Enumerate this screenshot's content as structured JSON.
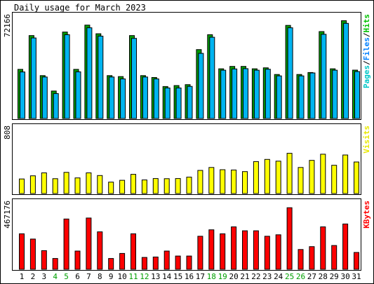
{
  "chart_data": {
    "type": "bar",
    "title": "Daily usage for March 2023",
    "days": [
      "1",
      "2",
      "3",
      "4",
      "5",
      "6",
      "7",
      "8",
      "9",
      "10",
      "11",
      "12",
      "13",
      "14",
      "15",
      "16",
      "17",
      "18",
      "19",
      "20",
      "21",
      "22",
      "23",
      "24",
      "25",
      "26",
      "27",
      "28",
      "29",
      "30",
      "31"
    ],
    "weekend_days": [
      "4",
      "5",
      "11",
      "12",
      "18",
      "19",
      "25",
      "26"
    ],
    "panels": [
      {
        "id": "pages-files-hits",
        "max_label": "72166",
        "ymax": 72166,
        "legend": [
          {
            "text": "Pages",
            "color": "#00c8c8"
          },
          {
            "text": "/",
            "color": "#000000"
          },
          {
            "text": "Files",
            "color": "#0080ff"
          },
          {
            "text": "/",
            "color": "#000000"
          },
          {
            "text": "Hits",
            "color": "#00c000"
          }
        ],
        "series": [
          {
            "name": "Hits",
            "color": "#009900",
            "values": [
              35400,
              59700,
              30900,
              19800,
              62200,
              35400,
              67200,
              61000,
              30900,
              30200,
              59700,
              30900,
              29500,
              23000,
              23700,
              24400,
              49600,
              60300,
              35800,
              37500,
              37500,
              35800,
              36500,
              31700,
              67000,
              31700,
              33100,
              62600,
              35800,
              70400,
              34800
            ]
          },
          {
            "name": "Files",
            "color": "#00b4f0",
            "values": [
              34500,
              59000,
              30900,
              19000,
              61300,
              34600,
              66300,
              60300,
              30900,
              29500,
              58700,
              30900,
              29500,
              23000,
              23000,
              24100,
              47900,
              59500,
              35800,
              36700,
              36900,
              35800,
              36500,
              31700,
              66300,
              31700,
              33800,
              61600,
              35800,
              69500,
              34800
            ]
          }
        ]
      },
      {
        "id": "visits",
        "max_label": "808",
        "ymax": 808,
        "legend": [
          {
            "text": "Visits",
            "color": "#e8e800"
          }
        ],
        "series": [
          {
            "name": "Visits",
            "color": "#ffff00",
            "values": [
              185,
              225,
              262,
              188,
              268,
              198,
              262,
              228,
              145,
              168,
              243,
              172,
              190,
              188,
              190,
              208,
              293,
              330,
              302,
              298,
              278,
              405,
              432,
              410,
              510,
              330,
              420,
              498,
              358,
              488,
              400
            ]
          }
        ]
      },
      {
        "id": "kbytes",
        "max_label": "467176",
        "ymax": 467176,
        "legend": [
          {
            "text": "KBytes",
            "color": "#ff0000"
          }
        ],
        "series": [
          {
            "name": "KBytes",
            "color": "#ff0000",
            "values": [
              257000,
              219000,
              135000,
              78000,
              364000,
              132000,
              371000,
              271000,
              78000,
              115000,
              257000,
              86000,
              89000,
              132000,
              96000,
              96000,
              239000,
              286000,
              257000,
              307000,
              279000,
              279000,
              239000,
              250000,
              446000,
              143000,
              164000,
              307000,
              172000,
              328000,
              122000
            ]
          }
        ]
      }
    ]
  }
}
